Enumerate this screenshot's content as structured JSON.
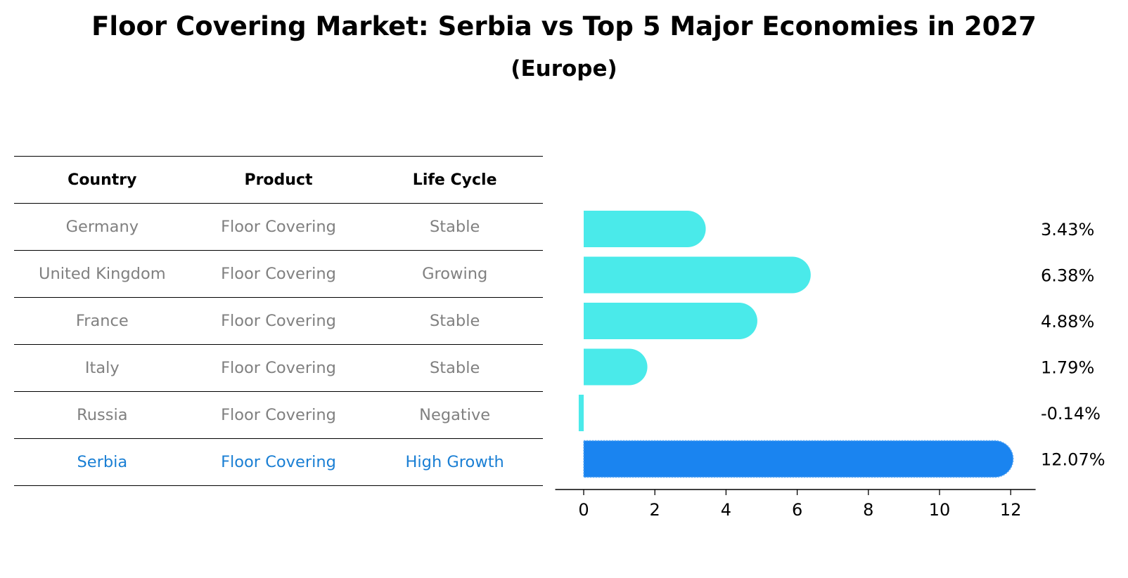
{
  "title": "Floor Covering Market: Serbia vs Top 5 Major Economies in 2027",
  "subtitle": "(Europe)",
  "table": {
    "headers": [
      "Country",
      "Product",
      "Life Cycle"
    ],
    "rows": [
      {
        "country": "Germany",
        "product": "Floor Covering",
        "life_cycle": "Stable",
        "highlight": false
      },
      {
        "country": "United Kingdom",
        "product": "Floor Covering",
        "life_cycle": "Growing",
        "highlight": false
      },
      {
        "country": "France",
        "product": "Floor Covering",
        "life_cycle": "Stable",
        "highlight": false
      },
      {
        "country": "Italy",
        "product": "Floor Covering",
        "life_cycle": "Stable",
        "highlight": false
      },
      {
        "country": "Russia",
        "product": "Floor Covering",
        "life_cycle": "Negative",
        "highlight": false
      },
      {
        "country": "Serbia",
        "product": "Floor Covering",
        "life_cycle": "High Growth",
        "highlight": true
      }
    ]
  },
  "colors": {
    "bar": "#4aeaea",
    "highlight_bar": "#1a84f0",
    "highlight_text": "#1a7fd4",
    "muted_text": "#808080"
  },
  "chart_data": {
    "type": "bar",
    "orientation": "horizontal",
    "categories": [
      "Germany",
      "United Kingdom",
      "France",
      "Italy",
      "Russia",
      "Serbia"
    ],
    "values": [
      3.43,
      6.38,
      4.88,
      1.79,
      -0.14,
      12.07
    ],
    "value_labels": [
      "3.43%",
      "6.38%",
      "4.88%",
      "1.79%",
      "-0.14%",
      "12.07%"
    ],
    "highlight_index": 5,
    "xlim": [
      -0.8,
      12.7
    ],
    "xticks": [
      0,
      2,
      4,
      6,
      8,
      10,
      12
    ],
    "grid": false,
    "legend": null
  }
}
